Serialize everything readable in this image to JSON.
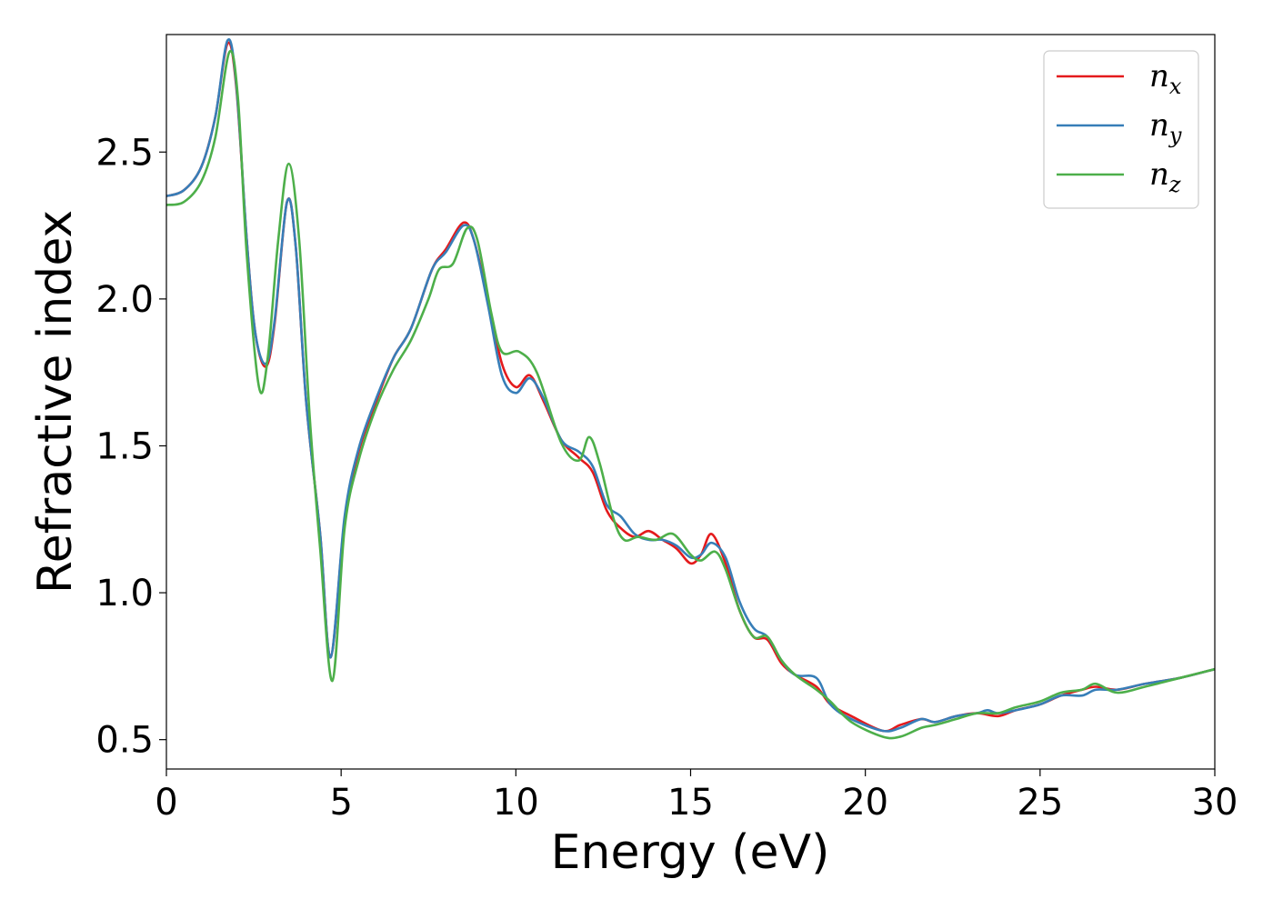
{
  "chart_data": {
    "type": "line",
    "xlabel": "Energy (eV)",
    "ylabel": "Refractive index",
    "xlim": [
      0,
      30
    ],
    "ylim": [
      0.4,
      2.9
    ],
    "xticks": [
      0,
      5,
      10,
      15,
      20,
      25,
      30
    ],
    "xtick_labels": [
      "0",
      "5",
      "10",
      "15",
      "20",
      "25",
      "30"
    ],
    "yticks": [
      0.5,
      1.0,
      1.5,
      2.0,
      2.5
    ],
    "ytick_labels": [
      "0.5",
      "1.0",
      "1.5",
      "2.0",
      "2.5"
    ],
    "grid": false,
    "legend_position": "top-right",
    "series": [
      {
        "name": "n_x",
        "label_base": "n",
        "label_sub": "x",
        "color": "#e41a1c",
        "points": [
          [
            0,
            2.35
          ],
          [
            0.5,
            2.37
          ],
          [
            1,
            2.45
          ],
          [
            1.4,
            2.62
          ],
          [
            1.75,
            2.87
          ],
          [
            2,
            2.72
          ],
          [
            2.3,
            2.2
          ],
          [
            2.55,
            1.88
          ],
          [
            2.85,
            1.77
          ],
          [
            3.1,
            1.92
          ],
          [
            3.45,
            2.33
          ],
          [
            3.7,
            2.18
          ],
          [
            4,
            1.65
          ],
          [
            4.4,
            1.2
          ],
          [
            4.7,
            0.78
          ],
          [
            5.1,
            1.25
          ],
          [
            5.5,
            1.48
          ],
          [
            6,
            1.65
          ],
          [
            6.5,
            1.8
          ],
          [
            7,
            1.9
          ],
          [
            7.6,
            2.1
          ],
          [
            8,
            2.17
          ],
          [
            8.5,
            2.26
          ],
          [
            8.8,
            2.2
          ],
          [
            9.2,
            2.0
          ],
          [
            9.6,
            1.78
          ],
          [
            10,
            1.7
          ],
          [
            10.4,
            1.74
          ],
          [
            10.8,
            1.65
          ],
          [
            11.3,
            1.52
          ],
          [
            11.8,
            1.46
          ],
          [
            12.2,
            1.41
          ],
          [
            12.6,
            1.28
          ],
          [
            13,
            1.22
          ],
          [
            13.4,
            1.19
          ],
          [
            13.8,
            1.21
          ],
          [
            14.2,
            1.18
          ],
          [
            14.6,
            1.15
          ],
          [
            15,
            1.1
          ],
          [
            15.3,
            1.13
          ],
          [
            15.6,
            1.2
          ],
          [
            16,
            1.1
          ],
          [
            16.4,
            0.94
          ],
          [
            16.8,
            0.85
          ],
          [
            17.2,
            0.84
          ],
          [
            17.6,
            0.76
          ],
          [
            18,
            0.72
          ],
          [
            18.6,
            0.68
          ],
          [
            19,
            0.62
          ],
          [
            19.6,
            0.58
          ],
          [
            20.5,
            0.53
          ],
          [
            21,
            0.55
          ],
          [
            21.6,
            0.57
          ],
          [
            22,
            0.56
          ],
          [
            22.6,
            0.58
          ],
          [
            23.2,
            0.59
          ],
          [
            23.8,
            0.58
          ],
          [
            24.3,
            0.6
          ],
          [
            25,
            0.62
          ],
          [
            25.6,
            0.65
          ],
          [
            26.2,
            0.67
          ],
          [
            26.6,
            0.68
          ],
          [
            27.2,
            0.67
          ],
          [
            28,
            0.69
          ],
          [
            29,
            0.71
          ],
          [
            30,
            0.74
          ]
        ]
      },
      {
        "name": "n_y",
        "label_base": "n",
        "label_sub": "y",
        "color": "#377eb8",
        "points": [
          [
            0,
            2.35
          ],
          [
            0.5,
            2.37
          ],
          [
            1,
            2.45
          ],
          [
            1.4,
            2.62
          ],
          [
            1.75,
            2.88
          ],
          [
            2,
            2.73
          ],
          [
            2.3,
            2.2
          ],
          [
            2.55,
            1.88
          ],
          [
            2.85,
            1.78
          ],
          [
            3.1,
            1.93
          ],
          [
            3.45,
            2.33
          ],
          [
            3.7,
            2.18
          ],
          [
            4,
            1.65
          ],
          [
            4.4,
            1.2
          ],
          [
            4.7,
            0.78
          ],
          [
            5.1,
            1.26
          ],
          [
            5.5,
            1.49
          ],
          [
            6,
            1.66
          ],
          [
            6.5,
            1.8
          ],
          [
            7,
            1.9
          ],
          [
            7.6,
            2.1
          ],
          [
            8,
            2.16
          ],
          [
            8.5,
            2.25
          ],
          [
            8.8,
            2.2
          ],
          [
            9.2,
            1.98
          ],
          [
            9.6,
            1.74
          ],
          [
            10,
            1.68
          ],
          [
            10.4,
            1.73
          ],
          [
            10.8,
            1.66
          ],
          [
            11.3,
            1.52
          ],
          [
            11.8,
            1.48
          ],
          [
            12.2,
            1.43
          ],
          [
            12.6,
            1.3
          ],
          [
            13,
            1.26
          ],
          [
            13.4,
            1.2
          ],
          [
            13.8,
            1.18
          ],
          [
            14.2,
            1.18
          ],
          [
            14.6,
            1.16
          ],
          [
            15,
            1.12
          ],
          [
            15.3,
            1.13
          ],
          [
            15.6,
            1.17
          ],
          [
            16,
            1.12
          ],
          [
            16.4,
            0.97
          ],
          [
            16.8,
            0.88
          ],
          [
            17.2,
            0.85
          ],
          [
            17.6,
            0.77
          ],
          [
            18,
            0.72
          ],
          [
            18.6,
            0.71
          ],
          [
            19,
            0.62
          ],
          [
            19.6,
            0.57
          ],
          [
            20.5,
            0.53
          ],
          [
            21,
            0.54
          ],
          [
            21.6,
            0.57
          ],
          [
            22,
            0.56
          ],
          [
            22.6,
            0.58
          ],
          [
            23.2,
            0.59
          ],
          [
            23.5,
            0.6
          ],
          [
            23.8,
            0.59
          ],
          [
            24.3,
            0.6
          ],
          [
            25,
            0.62
          ],
          [
            25.6,
            0.65
          ],
          [
            26.2,
            0.65
          ],
          [
            26.6,
            0.67
          ],
          [
            27.2,
            0.67
          ],
          [
            28,
            0.69
          ],
          [
            29,
            0.71
          ],
          [
            30,
            0.74
          ]
        ]
      },
      {
        "name": "n_z",
        "label_base": "n",
        "label_sub": "z",
        "color": "#4daf4a",
        "points": [
          [
            0,
            2.32
          ],
          [
            0.5,
            2.33
          ],
          [
            1,
            2.4
          ],
          [
            1.4,
            2.55
          ],
          [
            1.8,
            2.84
          ],
          [
            2.05,
            2.68
          ],
          [
            2.3,
            2.15
          ],
          [
            2.65,
            1.7
          ],
          [
            2.9,
            1.8
          ],
          [
            3.2,
            2.2
          ],
          [
            3.5,
            2.46
          ],
          [
            3.8,
            2.2
          ],
          [
            4.1,
            1.6
          ],
          [
            4.4,
            1.15
          ],
          [
            4.75,
            0.7
          ],
          [
            5.1,
            1.22
          ],
          [
            5.5,
            1.45
          ],
          [
            6,
            1.63
          ],
          [
            6.5,
            1.76
          ],
          [
            7,
            1.86
          ],
          [
            7.5,
            2.0
          ],
          [
            7.8,
            2.1
          ],
          [
            8.2,
            2.12
          ],
          [
            8.6,
            2.24
          ],
          [
            8.9,
            2.2
          ],
          [
            9.3,
            1.95
          ],
          [
            9.6,
            1.82
          ],
          [
            10.1,
            1.82
          ],
          [
            10.6,
            1.75
          ],
          [
            11.3,
            1.51
          ],
          [
            11.8,
            1.45
          ],
          [
            12.1,
            1.53
          ],
          [
            12.4,
            1.44
          ],
          [
            12.8,
            1.25
          ],
          [
            13.1,
            1.18
          ],
          [
            13.5,
            1.19
          ],
          [
            14,
            1.18
          ],
          [
            14.5,
            1.2
          ],
          [
            15,
            1.13
          ],
          [
            15.3,
            1.11
          ],
          [
            15.7,
            1.14
          ],
          [
            16,
            1.08
          ],
          [
            16.4,
            0.94
          ],
          [
            16.8,
            0.85
          ],
          [
            17.2,
            0.85
          ],
          [
            17.6,
            0.77
          ],
          [
            18,
            0.72
          ],
          [
            18.6,
            0.67
          ],
          [
            19,
            0.63
          ],
          [
            19.6,
            0.56
          ],
          [
            20.5,
            0.51
          ],
          [
            21,
            0.51
          ],
          [
            21.6,
            0.54
          ],
          [
            22,
            0.55
          ],
          [
            22.6,
            0.57
          ],
          [
            23.2,
            0.59
          ],
          [
            23.8,
            0.59
          ],
          [
            24.3,
            0.61
          ],
          [
            25,
            0.63
          ],
          [
            25.6,
            0.66
          ],
          [
            26.2,
            0.67
          ],
          [
            26.6,
            0.69
          ],
          [
            27.2,
            0.66
          ],
          [
            28,
            0.68
          ],
          [
            29,
            0.71
          ],
          [
            30,
            0.74
          ]
        ]
      }
    ]
  }
}
